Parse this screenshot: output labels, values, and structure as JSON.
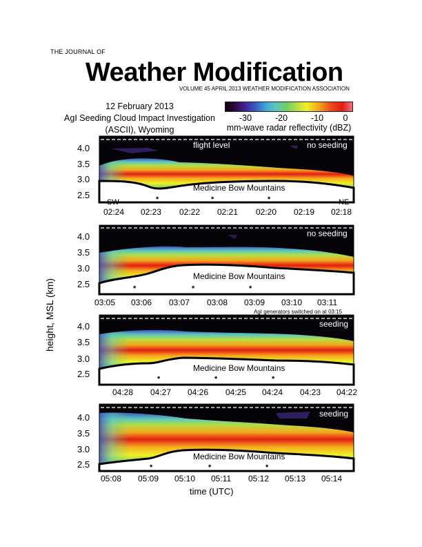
{
  "journal": {
    "prefix": "THE JOURNAL OF",
    "name": "Weather Modification",
    "volume_line": "VOLUME 45 APRIL 2013  WEATHER MODIFICATION ASSOCIATION"
  },
  "caption": {
    "line1": "12 February 2013",
    "line2": "AgI Seeding Cloud Impact Investigation",
    "line3": "(ASCII), Wyoming"
  },
  "colorbar": {
    "ticks": [
      "-30",
      "-20",
      "-10",
      "0"
    ],
    "label": "mm-wave radar reflectivity (dBZ)",
    "colors": [
      "#0a0005",
      "#2c0640",
      "#3b55bf",
      "#3fa0dc",
      "#6ecd63",
      "#eff127",
      "#ed4a1b",
      "#e31c14",
      "#f26c8a"
    ]
  },
  "axes": {
    "ylabel": "height, MSL (km)",
    "xlabel": "time (UTC)",
    "yticks": [
      "4.0",
      "3.5",
      "3.0",
      "2.5"
    ]
  },
  "panels": [
    {
      "seeding_label": "no seeding",
      "flight_level_label": "flight level",
      "mountain_label": "Medicine Bow Mountains",
      "left_dir": "SW",
      "right_dir": "NE",
      "xticks": [
        "02:24",
        "02:23",
        "02:22",
        "02:21",
        "02:20",
        "02:19",
        "02:18"
      ],
      "note": ""
    },
    {
      "seeding_label": "no seeding",
      "flight_level_label": "",
      "mountain_label": "Medicine Bow Mountains",
      "left_dir": "",
      "right_dir": "",
      "xticks": [
        "03:05",
        "03:06",
        "03:07",
        "03:08",
        "03:09",
        "03:10",
        "03:11"
      ],
      "note": "AgI generators switched on at 03:15"
    },
    {
      "seeding_label": "seeding",
      "flight_level_label": "",
      "mountain_label": "Medicine Bow Mountains",
      "left_dir": "",
      "right_dir": "",
      "xticks": [
        "04:28",
        "04:27",
        "04:26",
        "04:25",
        "04:24",
        "04:23",
        "04:22"
      ],
      "note": ""
    },
    {
      "seeding_label": "seeding",
      "flight_level_label": "",
      "mountain_label": "Medicine Bow Mountains",
      "left_dir": "",
      "right_dir": "",
      "xticks": [
        "05:08",
        "05:09",
        "05:10",
        "05:11",
        "05:12",
        "05:13",
        "05:14"
      ],
      "note": ""
    }
  ]
}
